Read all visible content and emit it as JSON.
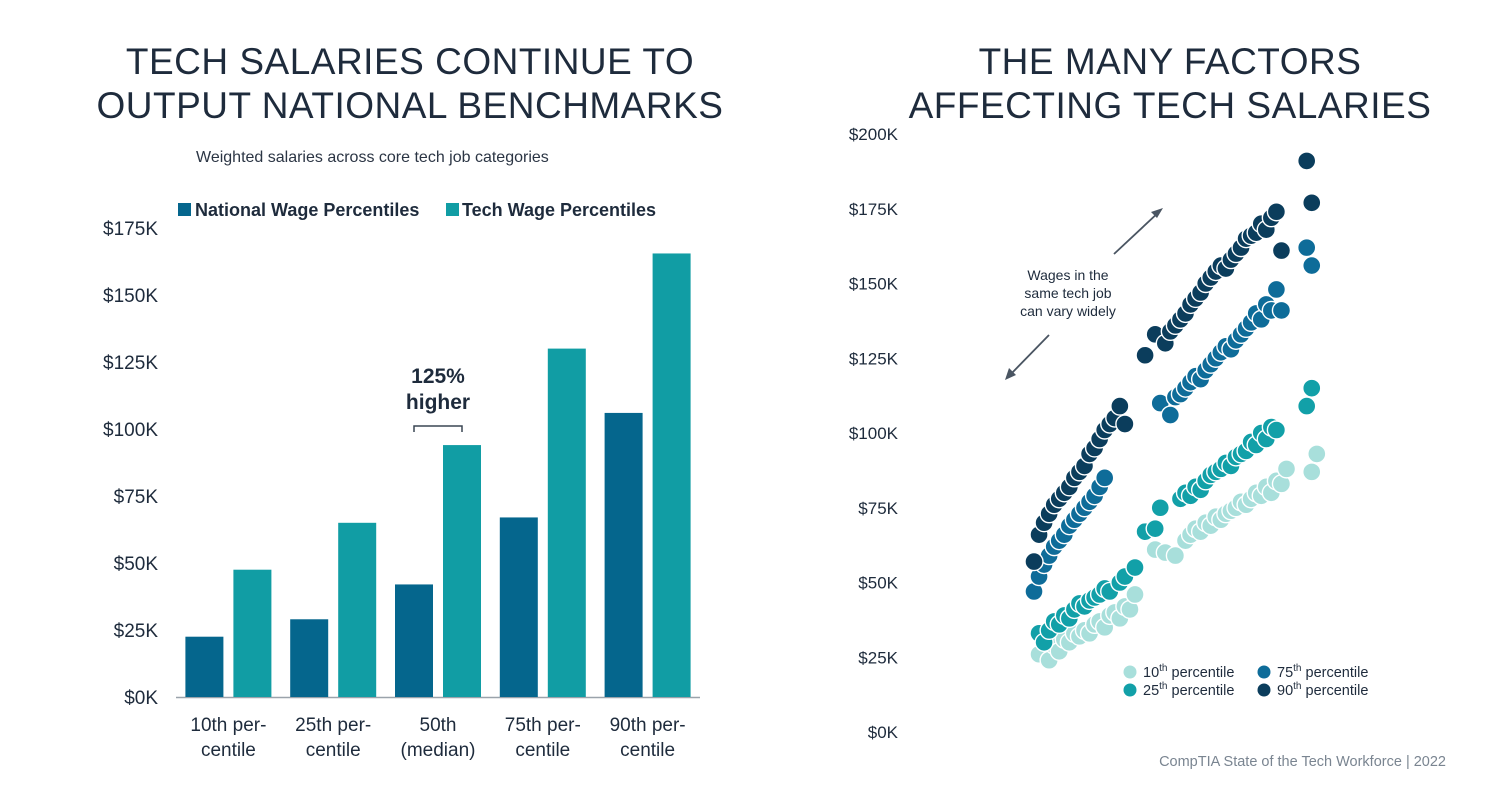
{
  "left_title": {
    "line1": "TECH SALARIES CONTINUE TO",
    "line2": "OUTPUT NATIONAL BENCHMARKS"
  },
  "right_title": {
    "line1": "THE MANY FACTORS",
    "line2": "AFFECTING TECH SALARIES"
  },
  "source": "CompTIA State of the Tech Workforce | 2022",
  "colors": {
    "national": "#05668d",
    "tech": "#119da4",
    "p10": "#a8dfdb",
    "p25": "#12a0a8",
    "p75": "#0e6c99",
    "p90": "#0b3d5c",
    "text": "#1e2b3c",
    "axis": "#9aa3ab"
  },
  "chart_data": [
    {
      "type": "bar",
      "title": "TECH SALARIES CONTINUE TO OUTPUT NATIONAL BENCHMARKS",
      "subtitle": "Weighted salaries across core tech job categories",
      "categories": [
        {
          "line1": "10th per-",
          "line2": "centile"
        },
        {
          "line1": "25th per-",
          "line2": "centile"
        },
        {
          "line1": "50th",
          "line2": "(median)"
        },
        {
          "line1": "75th per-",
          "line2": "centile"
        },
        {
          "line1": "90th per-",
          "line2": "centile"
        }
      ],
      "series": [
        {
          "name": "National Wage Percentiles",
          "values": [
            22.5,
            29,
            42,
            67,
            106
          ]
        },
        {
          "name": "Tech Wage Percentiles",
          "values": [
            47.5,
            65,
            94,
            130,
            165.5
          ]
        }
      ],
      "ylim": [
        0,
        175
      ],
      "yticks": [
        {
          "value": 0,
          "label": "$0K"
        },
        {
          "value": 25,
          "label": "$25K"
        },
        {
          "value": 50,
          "label": "$50K"
        },
        {
          "value": 75,
          "label": "$75K"
        },
        {
          "value": 100,
          "label": "$100K"
        },
        {
          "value": 125,
          "label": "$125K"
        },
        {
          "value": 150,
          "label": "$150K"
        },
        {
          "value": 175,
          "label": "$175K"
        }
      ],
      "annotation": {
        "category_index": 2,
        "line1": "125%",
        "line2": "higher"
      }
    },
    {
      "type": "scatter",
      "title": "THE MANY FACTORS AFFECTING TECH SALARIES",
      "ylim": [
        0,
        200
      ],
      "yticks": [
        {
          "value": 0,
          "label": "$0K"
        },
        {
          "value": 25,
          "label": "$25K"
        },
        {
          "value": 50,
          "label": "$50K"
        },
        {
          "value": 75,
          "label": "$75K"
        },
        {
          "value": 100,
          "label": "$100K"
        },
        {
          "value": 125,
          "label": "$125K"
        },
        {
          "value": 150,
          "label": "$150K"
        },
        {
          "value": 175,
          "label": "$175K"
        },
        {
          "value": 200,
          "label": "$200K"
        }
      ],
      "annotation": {
        "line1": "Wages in the",
        "line2": "same tech job",
        "line3": "can vary widely"
      },
      "legend": [
        {
          "key": "p10",
          "ordinal": "10",
          "suffix": "th",
          "rest": " percentile"
        },
        {
          "key": "p25",
          "ordinal": "25",
          "suffix": "th",
          "rest": " percentile"
        },
        {
          "key": "p75",
          "ordinal": "75",
          "suffix": "th",
          "rest": " percentile"
        },
        {
          "key": "p90",
          "ordinal": "90",
          "suffix": "th",
          "rest": " percentile"
        }
      ],
      "series": [
        {
          "name": "10th percentile",
          "key": "p10",
          "points": [
            [
              1,
              26
            ],
            [
              3,
              24
            ],
            [
              4,
              29
            ],
            [
              5,
              27
            ],
            [
              6,
              31
            ],
            [
              7,
              30
            ],
            [
              8,
              33
            ],
            [
              9,
              32
            ],
            [
              10,
              34
            ],
            [
              11,
              33
            ],
            [
              12,
              36
            ],
            [
              13,
              37
            ],
            [
              14,
              35
            ],
            [
              15,
              39
            ],
            [
              16,
              40
            ],
            [
              17,
              38
            ],
            [
              18,
              42
            ],
            [
              19,
              41
            ],
            [
              20,
              46
            ],
            [
              24,
              61
            ],
            [
              26,
              60
            ],
            [
              28,
              59
            ],
            [
              30,
              64
            ],
            [
              31,
              66
            ],
            [
              32,
              68
            ],
            [
              33,
              67
            ],
            [
              34,
              70
            ],
            [
              35,
              69
            ],
            [
              36,
              72
            ],
            [
              37,
              71
            ],
            [
              38,
              73
            ],
            [
              39,
              74
            ],
            [
              40,
              75
            ],
            [
              41,
              77
            ],
            [
              42,
              76
            ],
            [
              43,
              78
            ],
            [
              44,
              80
            ],
            [
              45,
              79
            ],
            [
              46,
              82
            ],
            [
              47,
              80
            ],
            [
              48,
              84
            ],
            [
              49,
              83
            ],
            [
              50,
              88
            ],
            [
              55,
              87
            ],
            [
              56,
              93
            ]
          ]
        },
        {
          "name": "25th percentile",
          "key": "p25",
          "points": [
            [
              1,
              33
            ],
            [
              2,
              30
            ],
            [
              3,
              34
            ],
            [
              4,
              37
            ],
            [
              5,
              36
            ],
            [
              6,
              39
            ],
            [
              7,
              38
            ],
            [
              8,
              41
            ],
            [
              9,
              43
            ],
            [
              10,
              42
            ],
            [
              11,
              44
            ],
            [
              12,
              45
            ],
            [
              13,
              46
            ],
            [
              14,
              48
            ],
            [
              15,
              47
            ],
            [
              17,
              50
            ],
            [
              18,
              52
            ],
            [
              20,
              55
            ],
            [
              22,
              67
            ],
            [
              24,
              68
            ],
            [
              25,
              75
            ],
            [
              29,
              78
            ],
            [
              30,
              80
            ],
            [
              31,
              79
            ],
            [
              32,
              82
            ],
            [
              33,
              81
            ],
            [
              34,
              84
            ],
            [
              35,
              86
            ],
            [
              36,
              87
            ],
            [
              37,
              88
            ],
            [
              38,
              90
            ],
            [
              39,
              89
            ],
            [
              40,
              92
            ],
            [
              41,
              93
            ],
            [
              42,
              94
            ],
            [
              43,
              97
            ],
            [
              44,
              96
            ],
            [
              45,
              100
            ],
            [
              46,
              98
            ],
            [
              47,
              102
            ],
            [
              48,
              101
            ],
            [
              54,
              109
            ],
            [
              55,
              115
            ]
          ]
        },
        {
          "name": "75th percentile",
          "key": "p75",
          "points": [
            [
              0,
              47
            ],
            [
              1,
              52
            ],
            [
              2,
              56
            ],
            [
              3,
              59
            ],
            [
              4,
              62
            ],
            [
              5,
              64
            ],
            [
              6,
              66
            ],
            [
              7,
              69
            ],
            [
              8,
              71
            ],
            [
              9,
              73
            ],
            [
              10,
              75
            ],
            [
              11,
              77
            ],
            [
              12,
              79
            ],
            [
              13,
              82
            ],
            [
              14,
              85
            ],
            [
              25,
              110
            ],
            [
              27,
              106
            ],
            [
              28,
              112
            ],
            [
              29,
              113
            ],
            [
              30,
              115
            ],
            [
              31,
              117
            ],
            [
              32,
              119
            ],
            [
              33,
              118
            ],
            [
              34,
              121
            ],
            [
              35,
              123
            ],
            [
              36,
              125
            ],
            [
              37,
              127
            ],
            [
              38,
              129
            ],
            [
              39,
              128
            ],
            [
              40,
              131
            ],
            [
              41,
              133
            ],
            [
              42,
              135
            ],
            [
              43,
              137
            ],
            [
              44,
              140
            ],
            [
              45,
              138
            ],
            [
              46,
              143
            ],
            [
              47,
              141
            ],
            [
              48,
              148
            ],
            [
              49,
              141
            ],
            [
              54,
              162
            ],
            [
              55,
              156
            ]
          ]
        },
        {
          "name": "90th percentile",
          "key": "p90",
          "points": [
            [
              0,
              57
            ],
            [
              1,
              66
            ],
            [
              2,
              70
            ],
            [
              3,
              73
            ],
            [
              4,
              76
            ],
            [
              5,
              78
            ],
            [
              6,
              80
            ],
            [
              7,
              82
            ],
            [
              8,
              85
            ],
            [
              9,
              87
            ],
            [
              10,
              89
            ],
            [
              11,
              93
            ],
            [
              12,
              95
            ],
            [
              13,
              98
            ],
            [
              14,
              101
            ],
            [
              15,
              103
            ],
            [
              16,
              105
            ],
            [
              17,
              109
            ],
            [
              18,
              103
            ],
            [
              22,
              126
            ],
            [
              24,
              133
            ],
            [
              26,
              130
            ],
            [
              27,
              134
            ],
            [
              28,
              136
            ],
            [
              29,
              138
            ],
            [
              30,
              140
            ],
            [
              31,
              143
            ],
            [
              32,
              145
            ],
            [
              33,
              147
            ],
            [
              34,
              150
            ],
            [
              35,
              152
            ],
            [
              36,
              154
            ],
            [
              37,
              156
            ],
            [
              38,
              155
            ],
            [
              39,
              158
            ],
            [
              40,
              160
            ],
            [
              41,
              162
            ],
            [
              42,
              165
            ],
            [
              43,
              166
            ],
            [
              44,
              167
            ],
            [
              45,
              170
            ],
            [
              46,
              168
            ],
            [
              47,
              172
            ],
            [
              48,
              174
            ],
            [
              49,
              161
            ],
            [
              54,
              191
            ],
            [
              55,
              177
            ]
          ]
        }
      ]
    }
  ]
}
